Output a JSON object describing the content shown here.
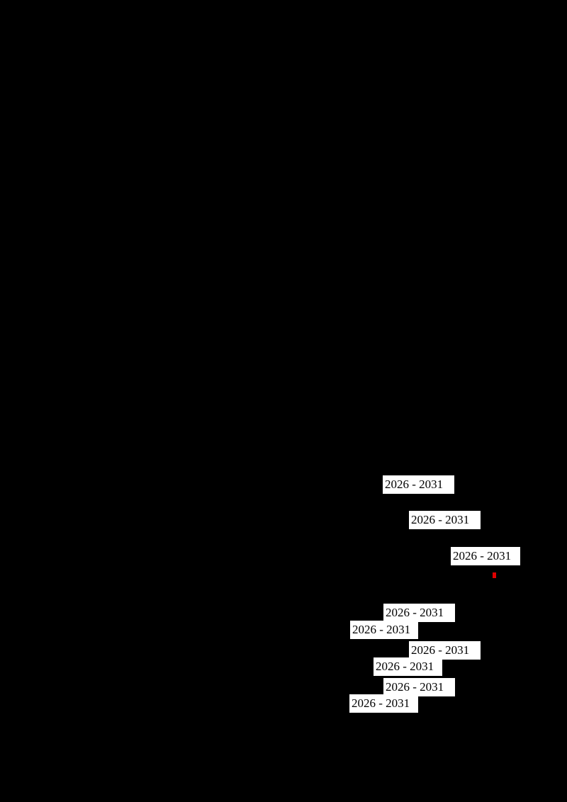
{
  "labels": [
    "2026 - 2031",
    "2026 - 2031",
    "2026 - 2031",
    "2026 - 2031",
    "2026 - 2031",
    "2026 - 2031",
    "2026 - 2031",
    "2026 - 2031",
    "2026 - 2031"
  ]
}
